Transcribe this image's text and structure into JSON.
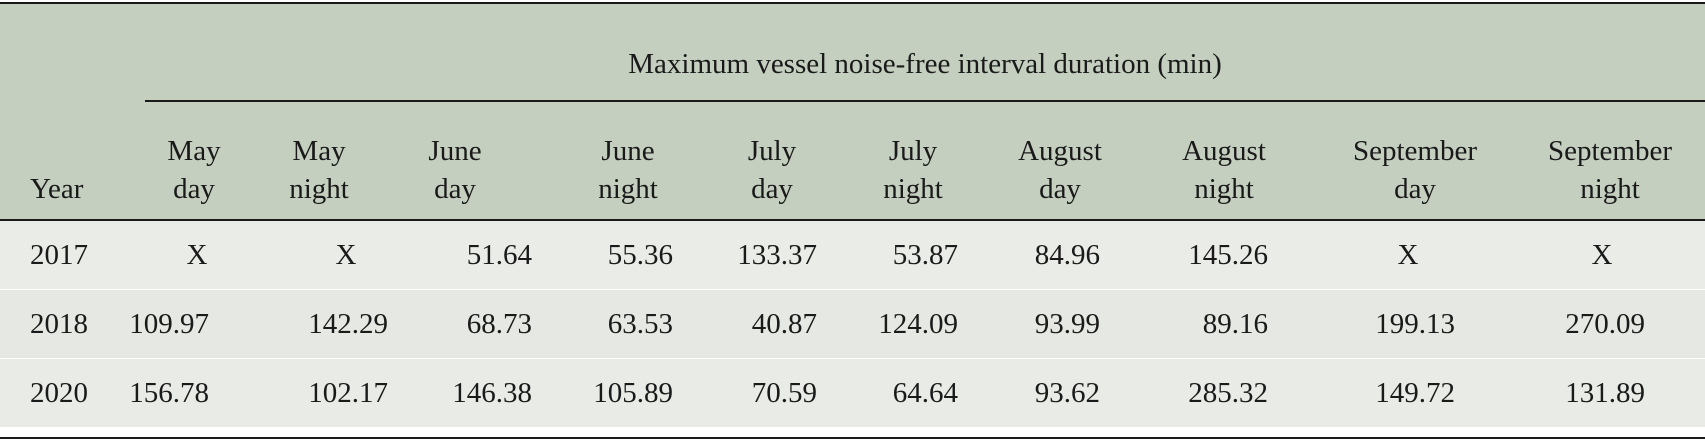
{
  "table": {
    "group_title": "Maximum vessel noise-free interval duration (min)",
    "year_header": "Year",
    "columns": [
      {
        "line1": "May",
        "line2": "day"
      },
      {
        "line1": "May",
        "line2": "night"
      },
      {
        "line1": "June",
        "line2": "day"
      },
      {
        "line1": "June",
        "line2": "night"
      },
      {
        "line1": "July",
        "line2": "day"
      },
      {
        "line1": "July",
        "line2": "night"
      },
      {
        "line1": "August",
        "line2": "day"
      },
      {
        "line1": "August",
        "line2": "night"
      },
      {
        "line1": "September",
        "line2": "day"
      },
      {
        "line1": "September",
        "line2": "night"
      }
    ],
    "rows": [
      {
        "year": "2017",
        "values": [
          "X",
          "X",
          "51.64",
          "55.36",
          "133.37",
          "53.87",
          "84.96",
          "145.26",
          "X",
          "X"
        ]
      },
      {
        "year": "2018",
        "values": [
          "109.97",
          "142.29",
          "68.73",
          "63.53",
          "40.87",
          "124.09",
          "93.99",
          "89.16",
          "199.13",
          "270.09"
        ]
      },
      {
        "year": "2020",
        "values": [
          "156.78",
          "102.17",
          "146.38",
          "105.89",
          "70.59",
          "64.64",
          "93.62",
          "285.32",
          "149.72",
          "131.89"
        ]
      }
    ]
  }
}
